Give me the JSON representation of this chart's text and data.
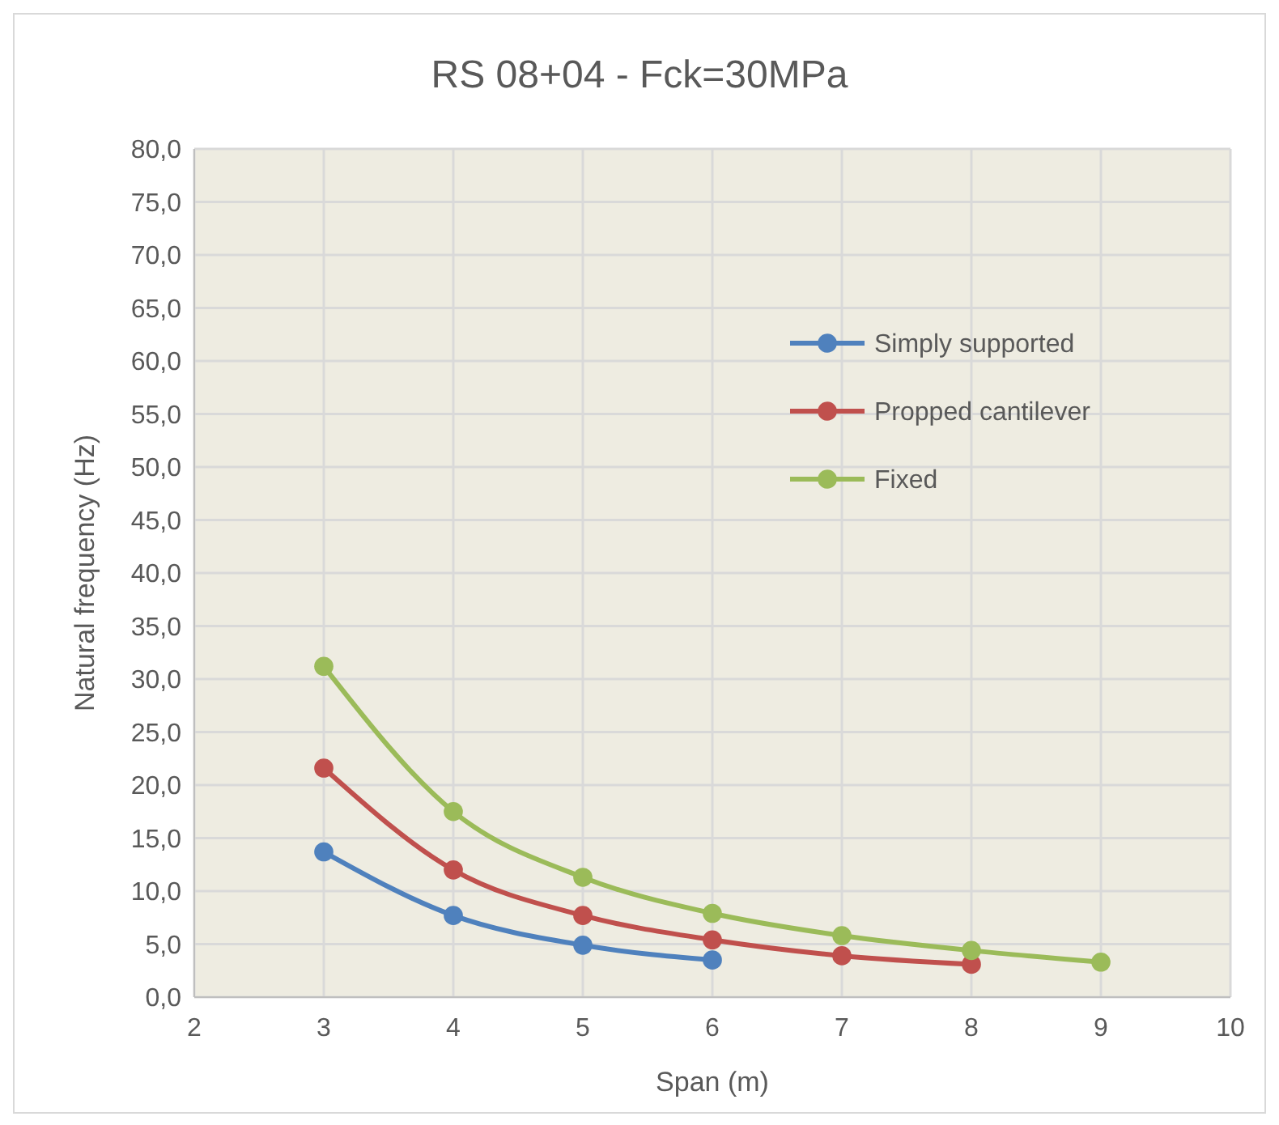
{
  "chart_data": {
    "type": "line",
    "title": "RS 08+04 - Fck=30MPa",
    "xlabel": "Span (m)",
    "ylabel": "Natural frequency (Hz)",
    "series": [
      {
        "name": "Simply supported",
        "color": "#4f81bd",
        "x": [
          3,
          4,
          5,
          6
        ],
        "values": [
          13.7,
          7.7,
          4.9,
          3.5
        ]
      },
      {
        "name": "Propped cantilever",
        "color": "#c0504d",
        "x": [
          3,
          4,
          5,
          6,
          7,
          8
        ],
        "values": [
          21.6,
          12.0,
          7.7,
          5.4,
          3.9,
          3.1
        ]
      },
      {
        "name": "Fixed",
        "color": "#9bbb59",
        "x": [
          3,
          4,
          5,
          6,
          7,
          8,
          9
        ],
        "values": [
          31.2,
          17.5,
          11.3,
          7.9,
          5.8,
          4.4,
          3.3
        ]
      }
    ],
    "xlim": [
      2,
      10
    ],
    "xticks": [
      2,
      3,
      4,
      5,
      6,
      7,
      8,
      9,
      10
    ],
    "ylim": [
      0,
      80
    ],
    "yticks": [
      {
        "value": 0,
        "label": "0,0"
      },
      {
        "value": 5,
        "label": "5,0"
      },
      {
        "value": 10,
        "label": "10,0"
      },
      {
        "value": 15,
        "label": "15,0"
      },
      {
        "value": 20,
        "label": "20,0"
      },
      {
        "value": 25,
        "label": "25,0"
      },
      {
        "value": 30,
        "label": "30,0"
      },
      {
        "value": 35,
        "label": "35,0"
      },
      {
        "value": 40,
        "label": "40,0"
      },
      {
        "value": 45,
        "label": "45,0"
      },
      {
        "value": 50,
        "label": "50,0"
      },
      {
        "value": 55,
        "label": "55,0"
      },
      {
        "value": 60,
        "label": "60,0"
      },
      {
        "value": 65,
        "label": "65,0"
      },
      {
        "value": 70,
        "label": "70,0"
      },
      {
        "value": 75,
        "label": "75,0"
      },
      {
        "value": 80,
        "label": "80,0"
      }
    ],
    "grid": true,
    "legend": "top right",
    "marker": "circle",
    "line_style": "solid"
  }
}
